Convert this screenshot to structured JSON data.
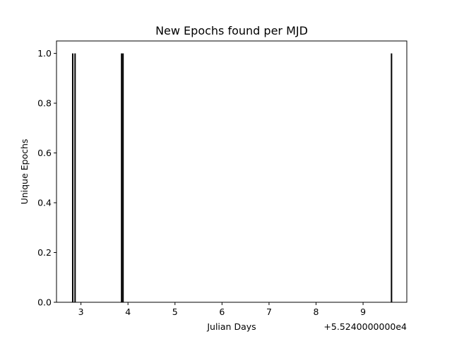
{
  "chart_data": {
    "type": "bar",
    "title": "New Epochs found per MJD",
    "xlabel": "Julian Days",
    "ylabel": "Unique Epochs",
    "x_offset_label": "+5.5240000000e4",
    "x_offset": 55240,
    "xlim": [
      2.48,
      9.93
    ],
    "ylim": [
      0.0,
      1.05
    ],
    "xticks": [
      3,
      4,
      5,
      6,
      7,
      8,
      9
    ],
    "yticks": [
      0.0,
      0.2,
      0.4,
      0.6,
      0.8,
      1.0
    ],
    "ytick_labels": [
      "0.0",
      "0.2",
      "0.4",
      "0.6",
      "0.8",
      "1.0"
    ],
    "bar_width": 0.02,
    "bars": [
      {
        "x": 2.82,
        "value": 1
      },
      {
        "x": 2.87,
        "value": 1
      },
      {
        "x": 3.86,
        "value": 1
      },
      {
        "x": 3.89,
        "value": 1
      },
      {
        "x": 9.6,
        "value": 1
      }
    ],
    "bar_color": "#000000",
    "grid": false,
    "legend": "none"
  }
}
